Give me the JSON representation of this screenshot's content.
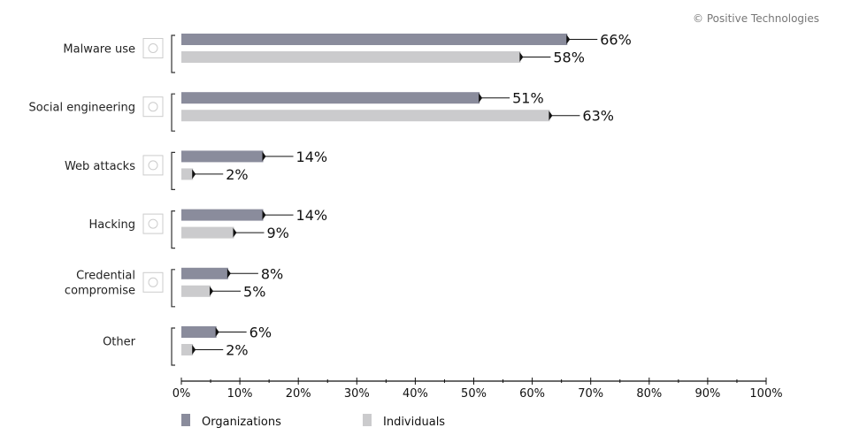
{
  "copyright": "© Positive Technologies",
  "chart_data": {
    "type": "bar",
    "orientation": "horizontal",
    "categories": [
      "Malware use",
      "Social engineering",
      "Web attacks",
      "Hacking",
      "Credential compromise",
      "Other"
    ],
    "category_icons": [
      "malware-bug-icon",
      "social-engineering-icon",
      "globe-icon",
      "hacking-icon",
      "eye-icon",
      "none"
    ],
    "series": [
      {
        "name": "Organizations",
        "color": "#8a8c9c",
        "values": [
          66,
          51,
          14,
          14,
          8,
          6
        ]
      },
      {
        "name": "Individuals",
        "color": "#cbcbcd",
        "values": [
          58,
          63,
          2,
          9,
          5,
          2
        ]
      }
    ],
    "value_labels": [
      [
        "66%",
        "58%"
      ],
      [
        "51%",
        "63%"
      ],
      [
        "14%",
        "2%"
      ],
      [
        "14%",
        "9%"
      ],
      [
        "8%",
        "5%"
      ],
      [
        "6%",
        "2%"
      ]
    ],
    "xlim": [
      0,
      100
    ],
    "xticks": [
      "0%",
      "10%",
      "20%",
      "30%",
      "40%",
      "50%",
      "60%",
      "70%",
      "80%",
      "90%",
      "100%"
    ],
    "xlabel": "",
    "ylabel": "",
    "title": "",
    "legend": "bottom-left",
    "grid": false
  }
}
